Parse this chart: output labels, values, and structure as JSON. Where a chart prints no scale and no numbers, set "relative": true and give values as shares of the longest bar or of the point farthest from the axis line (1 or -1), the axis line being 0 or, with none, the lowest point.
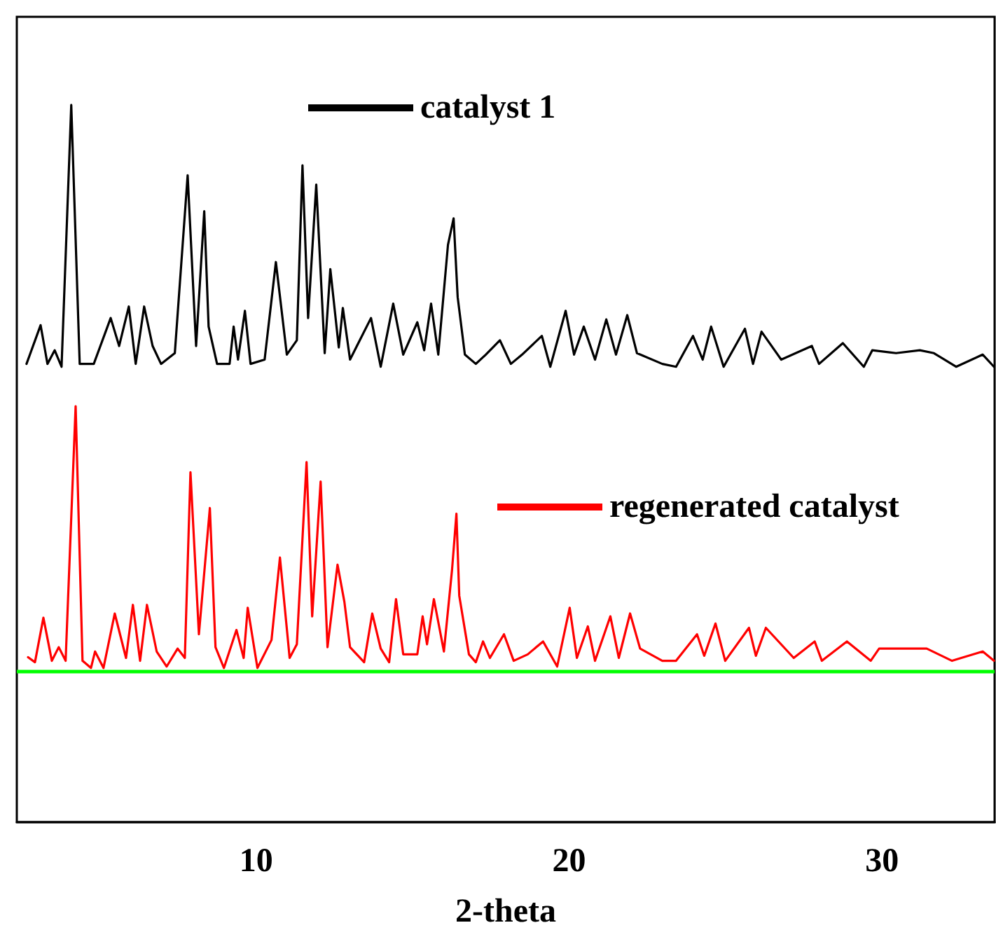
{
  "chart_data": {
    "type": "line",
    "relative": true,
    "xlabel": "2-theta",
    "xlim": [
      2.35,
      33.6
    ],
    "xticks": [
      10,
      20,
      30
    ],
    "tick_labels": "x",
    "grid": false,
    "legend": "top right",
    "marker": "none",
    "line_style": "solid",
    "ref_lines": [
      {
        "axis": "y",
        "value": 0.213,
        "color": "#00ff00"
      }
    ],
    "series": [
      {
        "name": "catalyst 1",
        "color": "#000000",
        "x": [
          2.66,
          3.11,
          3.33,
          3.56,
          3.78,
          4.09,
          4.36,
          4.81,
          5.35,
          5.62,
          5.93,
          6.15,
          6.42,
          6.69,
          6.96,
          7.4,
          7.81,
          8.08,
          8.34,
          8.48,
          8.75,
          9.15,
          9.28,
          9.42,
          9.64,
          9.82,
          10.27,
          10.63,
          10.98,
          11.3,
          11.48,
          11.66,
          11.92,
          12.19,
          12.37,
          12.64,
          12.77,
          13.0,
          13.67,
          13.98,
          14.38,
          14.7,
          15.15,
          15.37,
          15.59,
          15.82,
          16.13,
          16.31,
          16.44,
          16.67,
          17.02,
          17.34,
          17.79,
          18.14,
          18.5,
          19.13,
          19.4,
          19.89,
          20.16,
          20.47,
          20.83,
          21.19,
          21.5,
          21.86,
          22.17,
          22.98,
          23.42,
          23.96,
          24.27,
          24.54,
          24.94,
          25.62,
          25.88,
          26.15,
          26.78,
          27.76,
          27.99,
          28.75,
          29.42,
          29.69,
          30.45,
          31.21,
          31.66,
          32.37,
          33.22,
          33.58
        ],
        "values": [
          0.639,
          0.693,
          0.639,
          0.658,
          0.635,
          1,
          0.639,
          0.639,
          0.703,
          0.664,
          0.719,
          0.639,
          0.719,
          0.664,
          0.639,
          0.654,
          0.902,
          0.664,
          0.852,
          0.691,
          0.639,
          0.639,
          0.691,
          0.645,
          0.713,
          0.639,
          0.645,
          0.781,
          0.652,
          0.672,
          0.916,
          0.703,
          0.889,
          0.654,
          0.771,
          0.662,
          0.717,
          0.645,
          0.703,
          0.635,
          0.723,
          0.652,
          0.697,
          0.658,
          0.723,
          0.652,
          0.805,
          0.842,
          0.732,
          0.652,
          0.639,
          0.652,
          0.672,
          0.639,
          0.652,
          0.678,
          0.635,
          0.713,
          0.652,
          0.691,
          0.645,
          0.701,
          0.652,
          0.707,
          0.654,
          0.639,
          0.635,
          0.678,
          0.645,
          0.691,
          0.635,
          0.688,
          0.639,
          0.684,
          0.645,
          0.664,
          0.639,
          0.668,
          0.635,
          0.658,
          0.654,
          0.658,
          0.654,
          0.635,
          0.652,
          0.635
        ]
      },
      {
        "name": "regenerated catalyst",
        "color": "#ff0000",
        "x": [
          2.71,
          2.93,
          3.2,
          3.47,
          3.69,
          3.91,
          4.23,
          4.45,
          4.72,
          4.85,
          5.12,
          5.48,
          5.84,
          6.06,
          6.29,
          6.51,
          6.82,
          7.14,
          7.49,
          7.72,
          7.9,
          8.17,
          8.52,
          8.7,
          8.97,
          9.37,
          9.6,
          9.73,
          10.04,
          10.49,
          10.76,
          11.07,
          11.3,
          11.61,
          11.79,
          12.06,
          12.28,
          12.6,
          12.82,
          13.0,
          13.45,
          13.71,
          13.98,
          14.25,
          14.47,
          14.7,
          15.15,
          15.32,
          15.46,
          15.68,
          16.0,
          16.26,
          16.4,
          16.49,
          16.8,
          17.02,
          17.25,
          17.47,
          17.92,
          18.23,
          18.68,
          19.17,
          19.62,
          20.02,
          20.25,
          20.6,
          20.83,
          21.32,
          21.59,
          21.95,
          22.27,
          22.98,
          23.42,
          24.09,
          24.32,
          24.68,
          24.99,
          25.75,
          25.97,
          26.29,
          27.18,
          27.85,
          28.08,
          28.88,
          29.64,
          29.91,
          30.54,
          31.43,
          32.24,
          33.22,
          33.58
        ],
        "values": [
          0.23,
          0.223,
          0.285,
          0.225,
          0.244,
          0.225,
          0.58,
          0.225,
          0.215,
          0.238,
          0.215,
          0.291,
          0.229,
          0.303,
          0.225,
          0.303,
          0.238,
          0.217,
          0.242,
          0.229,
          0.488,
          0.262,
          0.438,
          0.244,
          0.215,
          0.268,
          0.229,
          0.299,
          0.215,
          0.254,
          0.369,
          0.229,
          0.248,
          0.502,
          0.287,
          0.475,
          0.244,
          0.359,
          0.307,
          0.244,
          0.223,
          0.291,
          0.242,
          0.223,
          0.311,
          0.234,
          0.234,
          0.287,
          0.248,
          0.311,
          0.238,
          0.352,
          0.43,
          0.316,
          0.234,
          0.223,
          0.252,
          0.229,
          0.262,
          0.225,
          0.234,
          0.252,
          0.217,
          0.299,
          0.229,
          0.273,
          0.225,
          0.287,
          0.229,
          0.291,
          0.242,
          0.225,
          0.225,
          0.262,
          0.232,
          0.277,
          0.225,
          0.271,
          0.232,
          0.271,
          0.229,
          0.252,
          0.225,
          0.252,
          0.225,
          0.242,
          0.242,
          0.242,
          0.225,
          0.238,
          0.225
        ]
      }
    ]
  }
}
